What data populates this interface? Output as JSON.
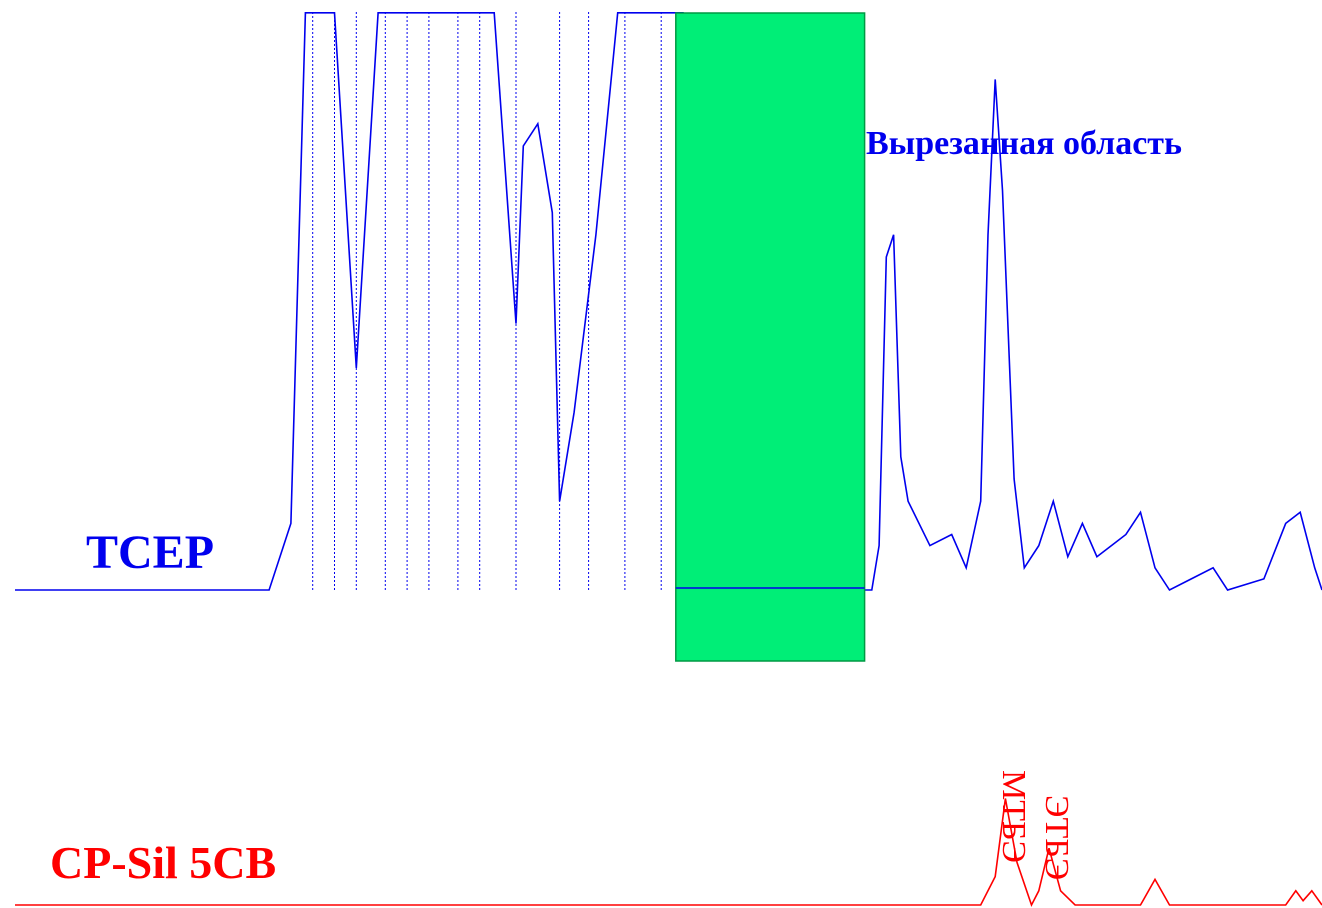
{
  "chart_data": {
    "type": "line",
    "title": "",
    "xlabel": "",
    "ylabel": "",
    "grid": false,
    "legend": "none",
    "colors": {
      "tcep": "#0000ee",
      "cpsil": "#ff0000",
      "region_fill": "#00ee77",
      "region_border": "#009944"
    },
    "series": [
      {
        "name": "TCEP",
        "color": "#0000ee",
        "points": [
          [
            0,
            0
          ],
          [
            1.5,
            0
          ],
          [
            1.75,
            0
          ],
          [
            1.9,
            3
          ],
          [
            2,
            26
          ],
          [
            2.2,
            26
          ],
          [
            2.35,
            10
          ],
          [
            2.5,
            26
          ],
          [
            3.3,
            26
          ],
          [
            3.45,
            12
          ],
          [
            3.5,
            20
          ],
          [
            3.6,
            21
          ],
          [
            3.7,
            17
          ],
          [
            3.75,
            4
          ],
          [
            3.85,
            8
          ],
          [
            4,
            16
          ],
          [
            4.15,
            26
          ],
          [
            4.6,
            26
          ],
          [
            4.75,
            16
          ],
          [
            4.8,
            19
          ],
          [
            4.85,
            16
          ],
          [
            4.9,
            0
          ],
          [
            5.9,
            0
          ],
          [
            5.95,
            2
          ],
          [
            6,
            15
          ],
          [
            6.05,
            16
          ],
          [
            6.1,
            6
          ],
          [
            6.15,
            4
          ],
          [
            6.3,
            2
          ],
          [
            6.45,
            2.5
          ],
          [
            6.55,
            1
          ],
          [
            6.65,
            4
          ],
          [
            6.7,
            16
          ],
          [
            6.75,
            23
          ],
          [
            6.8,
            18
          ],
          [
            6.88,
            5
          ],
          [
            6.95,
            1
          ],
          [
            7.05,
            2
          ],
          [
            7.15,
            4
          ],
          [
            7.25,
            1.5
          ],
          [
            7.35,
            3
          ],
          [
            7.45,
            1.5
          ],
          [
            7.55,
            2
          ],
          [
            7.65,
            2.5
          ],
          [
            7.75,
            3.5
          ],
          [
            7.85,
            1
          ],
          [
            7.95,
            0
          ],
          [
            8.1,
            0.5
          ],
          [
            8.25,
            1
          ],
          [
            8.35,
            0
          ],
          [
            8.6,
            0.5
          ],
          [
            8.75,
            3
          ],
          [
            8.85,
            3.5
          ],
          [
            8.95,
            1
          ],
          [
            9,
            0
          ]
        ]
      },
      {
        "name": "CP-Sil 5CB",
        "color": "#ff0000",
        "points": [
          [
            0,
            0
          ],
          [
            6.65,
            0
          ],
          [
            6.75,
            2
          ],
          [
            6.82,
            7.5
          ],
          [
            6.9,
            3
          ],
          [
            7,
            0
          ],
          [
            7.05,
            1
          ],
          [
            7.12,
            4
          ],
          [
            7.2,
            1
          ],
          [
            7.3,
            0
          ],
          [
            7.75,
            0
          ],
          [
            7.85,
            1.8
          ],
          [
            7.95,
            0
          ],
          [
            8.75,
            0
          ],
          [
            8.82,
            1
          ],
          [
            8.87,
            0.3
          ],
          [
            8.93,
            1
          ],
          [
            9,
            0
          ]
        ]
      }
    ],
    "region": {
      "label": "Вырезанная область",
      "x_start": 4.55,
      "x_end": 5.85
    },
    "labels": {
      "tcep": "TCEP",
      "cpsil": "CP-Sil 5CB",
      "mtbe": "МТБЭ",
      "etbe": "ЭТБЭ"
    },
    "peaks": [
      {
        "name": "МТБЭ",
        "x": 6.82
      },
      {
        "name": "ЭТБЭ",
        "x": 7.12
      }
    ]
  }
}
